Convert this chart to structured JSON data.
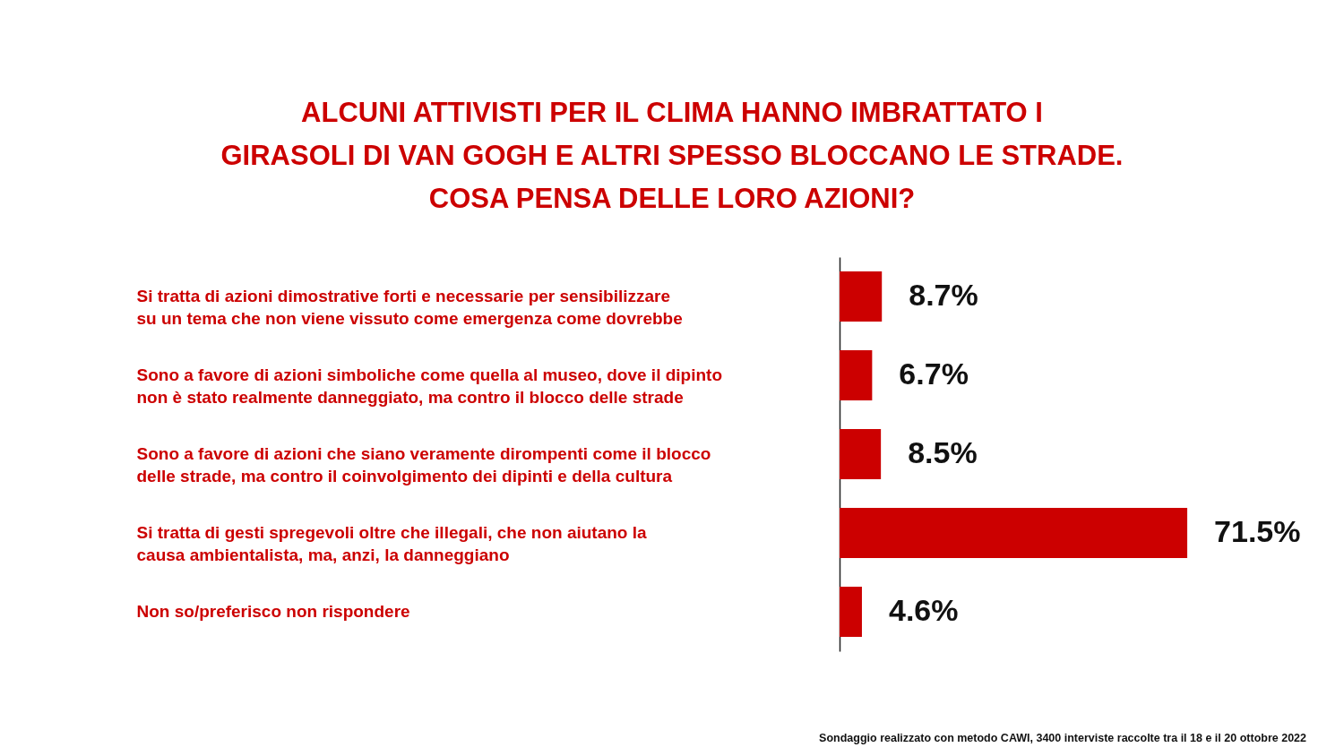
{
  "chart_data": {
    "type": "bar",
    "orientation": "horizontal",
    "title": "ALCUNI ATTIVISTI PER IL CLIMA HANNO IMBRATTATO I GIRASOLI DI VAN GOGH E ALTRI SPESSO BLOCCANO LE STRADE. COSA PENSA DELLE LORO AZIONI?",
    "categories": [
      "Si tratta di azioni dimostrative forti e necessarie per sensibilizzare su un tema che non viene vissuto come emergenza come dovrebbe",
      "Sono a favore di azioni simboliche come quella al museo, dove il dipinto non è stato realmente danneggiato, ma contro il blocco delle strade",
      "Sono a favore di azioni che siano veramente dirompenti come il blocco delle strade, ma contro il coinvolgimento dei dipinti e della cultura",
      "Si tratta di gesti spregevoli oltre che illegali, che non aiutano la causa ambientalista, ma, anzi, la danneggiano",
      "Non so/preferisco non rispondere"
    ],
    "values": [
      8.7,
      6.7,
      8.5,
      71.5,
      4.6
    ],
    "value_labels": [
      "8.7%",
      "6.7%",
      "8.5%",
      "71.5%",
      "4.6%"
    ],
    "color": "#cc0000",
    "tick_labels": "y",
    "annotations": [
      "Sondaggio realizzato con metodo CAWI, 3400 interviste raccolte tra il 18 e il 20 ottobre 2022"
    ]
  }
}
